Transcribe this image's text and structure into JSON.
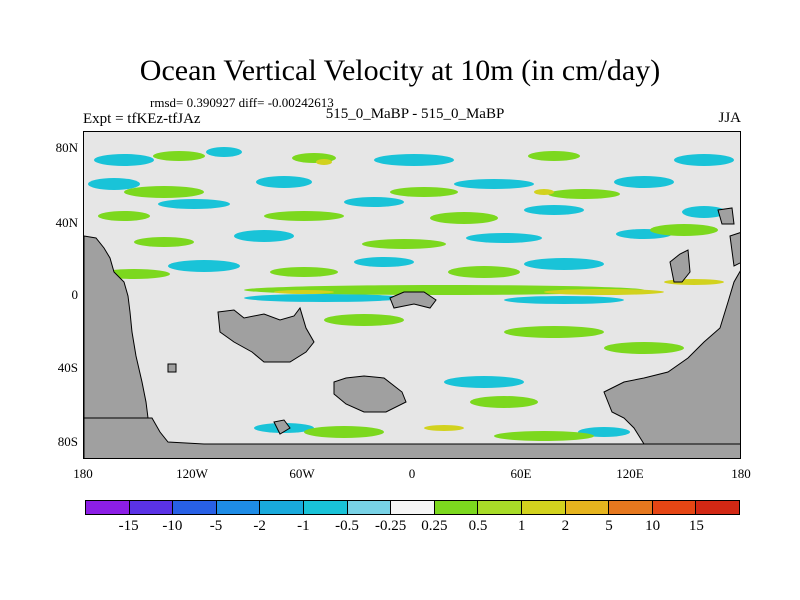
{
  "title": "Ocean Vertical Velocity at 10m (in cm/day)",
  "stats": "rmsd= 0.390927 diff= -0.00242613",
  "experiment": "Expt = tfKEz-tfJAz",
  "case_label": "515_0_MaBP - 515_0_MaBP",
  "season": "JJA",
  "colors": {
    "land": "#a0a0a0",
    "background": "#e6e6e6",
    "green": "#7cd81e",
    "light_green": "#a8dc28",
    "cyan": "#19c3d8",
    "blue": "#1e8ce6"
  },
  "chart_data": {
    "type": "heatmap",
    "title": "Ocean Vertical Velocity at 10m (in cm/day)",
    "x_ticks": [
      "180",
      "120W",
      "60W",
      "0",
      "60E",
      "120E",
      "180"
    ],
    "y_ticks": [
      "80N",
      "40N",
      "0",
      "40S",
      "80S"
    ],
    "colorbar": {
      "labels": [
        "-15",
        "-10",
        "-5",
        "-2",
        "-1",
        "-0.5",
        "-0.25",
        "0.25",
        "0.5",
        "1",
        "2",
        "5",
        "10",
        "15"
      ],
      "colors": [
        "#8c1ee6",
        "#5a32e6",
        "#2860e6",
        "#1e8ce6",
        "#19aadc",
        "#19c3d8",
        "#78d2e6",
        "#f5f5f5",
        "#7cd81e",
        "#a8dc28",
        "#d2d21e",
        "#e6b41e",
        "#e6781e",
        "#e64614",
        "#d22814"
      ]
    }
  }
}
